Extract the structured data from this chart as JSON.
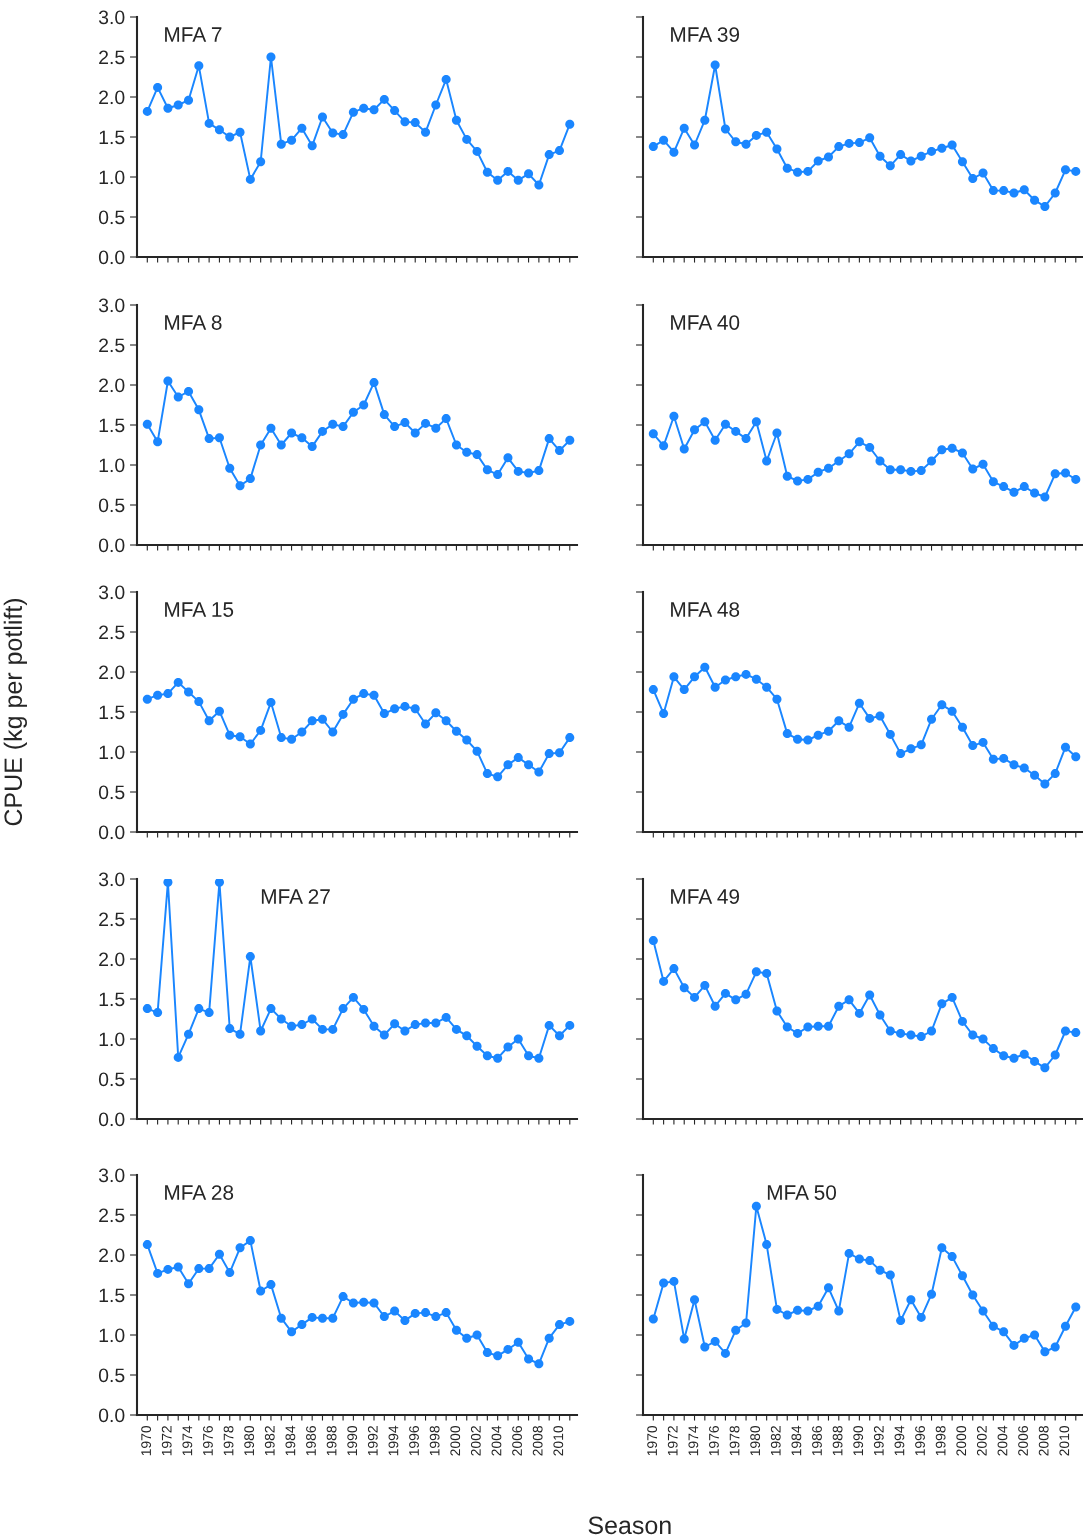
{
  "chart_data": [
    {
      "type": "line",
      "title": "MFA 7",
      "marker": "circle",
      "xlim": [
        1969,
        2011.7
      ],
      "ylim": [
        0,
        3
      ],
      "tick_labels": "y",
      "x": [
        1970,
        1971,
        1972,
        1973,
        1974,
        1975,
        1976,
        1977,
        1978,
        1979,
        1980,
        1981,
        1982,
        1983,
        1984,
        1985,
        1986,
        1987,
        1988,
        1989,
        1990,
        1991,
        1992,
        1993,
        1994,
        1995,
        1996,
        1997,
        1998,
        1999,
        2000,
        2001,
        2002,
        2003,
        2004,
        2005,
        2006,
        2007,
        2008,
        2009,
        2010,
        2011
      ],
      "xticks": [
        1970,
        {
          "value": 1971,
          "label": null
        },
        1972,
        {
          "value": 1973,
          "label": null
        },
        1974,
        {
          "value": 1975,
          "label": null
        },
        1976,
        {
          "value": 1977,
          "label": null
        },
        1978,
        {
          "value": 1979,
          "label": null
        },
        1980,
        {
          "value": 1981,
          "label": null
        },
        1982,
        {
          "value": 1983,
          "label": null
        },
        1984,
        {
          "value": 1985,
          "label": null
        },
        1986,
        {
          "value": 1987,
          "label": null
        },
        1988,
        {
          "value": 1989,
          "label": null
        },
        1990,
        {
          "value": 1991,
          "label": null
        },
        1992,
        {
          "value": 1993,
          "label": null
        },
        1994,
        {
          "value": 1995,
          "label": null
        },
        1996,
        {
          "value": 1997,
          "label": null
        },
        1998,
        {
          "value": 1999,
          "label": null
        },
        2000,
        {
          "value": 2001,
          "label": null
        },
        2002,
        {
          "value": 2003,
          "label": null
        },
        2004,
        {
          "value": 2005,
          "label": null
        },
        2006,
        {
          "value": 2007,
          "label": null
        },
        2008,
        {
          "value": 2009,
          "label": null
        },
        2010,
        {
          "value": 2011,
          "label": null
        }
      ],
      "yticks": [
        {
          "value": 0,
          "label": "0.0"
        },
        {
          "value": 0.5,
          "label": "0.5"
        },
        {
          "value": 1,
          "label": "1.0"
        },
        {
          "value": 1.5,
          "label": "1.5"
        },
        {
          "value": 2,
          "label": "2.0"
        },
        {
          "value": 2.5,
          "label": "2.5"
        },
        {
          "value": 3,
          "label": "3.0"
        }
      ],
      "series": [
        {
          "color": "#1a86ff",
          "values": [
            1.82,
            2.12,
            1.86,
            1.9,
            1.96,
            2.39,
            1.67,
            1.59,
            1.5,
            1.56,
            0.97,
            1.19,
            2.5,
            1.41,
            1.46,
            1.61,
            1.39,
            1.75,
            1.55,
            1.53,
            1.81,
            1.86,
            1.84,
            1.97,
            1.83,
            1.69,
            1.68,
            1.56,
            1.9,
            2.22,
            1.71,
            1.47,
            1.32,
            1.06,
            0.96,
            1.07,
            0.96,
            1.04,
            0.9,
            1.28,
            1.33,
            1.66
          ]
        }
      ]
    },
    {
      "type": "line",
      "title": "MFA 39",
      "marker": "circle",
      "xlim": [
        1969,
        2011.7
      ],
      "ylim": [
        0,
        3
      ],
      "tick_labels": false,
      "x": [
        1970,
        1971,
        1972,
        1973,
        1974,
        1975,
        1976,
        1977,
        1978,
        1979,
        1980,
        1981,
        1982,
        1983,
        1984,
        1985,
        1986,
        1987,
        1988,
        1989,
        1990,
        1991,
        1992,
        1993,
        1994,
        1995,
        1996,
        1997,
        1998,
        1999,
        2000,
        2001,
        2002,
        2003,
        2004,
        2005,
        2006,
        2007,
        2008,
        2009,
        2010,
        2011
      ],
      "xticks": [
        1970,
        {
          "value": 1971,
          "label": null
        },
        1972,
        {
          "value": 1973,
          "label": null
        },
        1974,
        {
          "value": 1975,
          "label": null
        },
        1976,
        {
          "value": 1977,
          "label": null
        },
        1978,
        {
          "value": 1979,
          "label": null
        },
        1980,
        {
          "value": 1981,
          "label": null
        },
        1982,
        {
          "value": 1983,
          "label": null
        },
        1984,
        {
          "value": 1985,
          "label": null
        },
        1986,
        {
          "value": 1987,
          "label": null
        },
        1988,
        {
          "value": 1989,
          "label": null
        },
        1990,
        {
          "value": 1991,
          "label": null
        },
        1992,
        {
          "value": 1993,
          "label": null
        },
        1994,
        {
          "value": 1995,
          "label": null
        },
        1996,
        {
          "value": 1997,
          "label": null
        },
        1998,
        {
          "value": 1999,
          "label": null
        },
        2000,
        {
          "value": 2001,
          "label": null
        },
        2002,
        {
          "value": 2003,
          "label": null
        },
        2004,
        {
          "value": 2005,
          "label": null
        },
        2006,
        {
          "value": 2007,
          "label": null
        },
        2008,
        {
          "value": 2009,
          "label": null
        },
        2010,
        {
          "value": 2011,
          "label": null
        }
      ],
      "yticks": [
        {
          "value": 0,
          "label": null
        },
        {
          "value": 0.5,
          "label": null
        },
        {
          "value": 1,
          "label": null
        },
        {
          "value": 1.5,
          "label": null
        },
        {
          "value": 2,
          "label": null
        },
        {
          "value": 2.5,
          "label": null
        },
        {
          "value": 3,
          "label": null
        }
      ],
      "series": [
        {
          "color": "#1a86ff",
          "values": [
            1.38,
            1.46,
            1.31,
            1.61,
            1.4,
            1.71,
            2.4,
            1.6,
            1.44,
            1.41,
            1.52,
            1.56,
            1.35,
            1.11,
            1.06,
            1.07,
            1.2,
            1.25,
            1.38,
            1.42,
            1.43,
            1.49,
            1.26,
            1.14,
            1.28,
            1.2,
            1.26,
            1.32,
            1.36,
            1.4,
            1.19,
            0.98,
            1.05,
            0.83,
            0.83,
            0.8,
            0.84,
            0.71,
            0.63,
            0.8,
            1.09,
            1.07
          ]
        }
      ]
    },
    {
      "type": "line",
      "title": "MFA 8",
      "marker": "circle",
      "xlim": [
        1969,
        2011.7
      ],
      "ylim": [
        0,
        3
      ],
      "tick_labels": "y",
      "x": [
        1970,
        1971,
        1972,
        1973,
        1974,
        1975,
        1976,
        1977,
        1978,
        1979,
        1980,
        1981,
        1982,
        1983,
        1984,
        1985,
        1986,
        1987,
        1988,
        1989,
        1990,
        1991,
        1992,
        1993,
        1994,
        1995,
        1996,
        1997,
        1998,
        1999,
        2000,
        2001,
        2002,
        2003,
        2004,
        2005,
        2006,
        2007,
        2008,
        2009,
        2010,
        2011
      ],
      "xticks": [
        1970,
        {
          "value": 1971,
          "label": null
        },
        1972,
        {
          "value": 1973,
          "label": null
        },
        1974,
        {
          "value": 1975,
          "label": null
        },
        1976,
        {
          "value": 1977,
          "label": null
        },
        1978,
        {
          "value": 1979,
          "label": null
        },
        1980,
        {
          "value": 1981,
          "label": null
        },
        1982,
        {
          "value": 1983,
          "label": null
        },
        1984,
        {
          "value": 1985,
          "label": null
        },
        1986,
        {
          "value": 1987,
          "label": null
        },
        1988,
        {
          "value": 1989,
          "label": null
        },
        1990,
        {
          "value": 1991,
          "label": null
        },
        1992,
        {
          "value": 1993,
          "label": null
        },
        1994,
        {
          "value": 1995,
          "label": null
        },
        1996,
        {
          "value": 1997,
          "label": null
        },
        1998,
        {
          "value": 1999,
          "label": null
        },
        2000,
        {
          "value": 2001,
          "label": null
        },
        2002,
        {
          "value": 2003,
          "label": null
        },
        2004,
        {
          "value": 2005,
          "label": null
        },
        2006,
        {
          "value": 2007,
          "label": null
        },
        2008,
        {
          "value": 2009,
          "label": null
        },
        2010,
        {
          "value": 2011,
          "label": null
        }
      ],
      "yticks": [
        {
          "value": 0,
          "label": "0.0"
        },
        {
          "value": 0.5,
          "label": "0.5"
        },
        {
          "value": 1,
          "label": "1.0"
        },
        {
          "value": 1.5,
          "label": "1.5"
        },
        {
          "value": 2,
          "label": "2.0"
        },
        {
          "value": 2.5,
          "label": "2.5"
        },
        {
          "value": 3,
          "label": "3.0"
        }
      ],
      "series": [
        {
          "color": "#1a86ff",
          "values": [
            1.51,
            1.29,
            2.05,
            1.85,
            1.92,
            1.69,
            1.33,
            1.34,
            0.96,
            0.74,
            0.83,
            1.25,
            1.46,
            1.25,
            1.4,
            1.34,
            1.23,
            1.42,
            1.51,
            1.48,
            1.66,
            1.75,
            2.03,
            1.63,
            1.48,
            1.53,
            1.4,
            1.52,
            1.46,
            1.58,
            1.25,
            1.16,
            1.13,
            0.94,
            0.88,
            1.09,
            0.92,
            0.9,
            0.93,
            1.33,
            1.18,
            1.31
          ]
        }
      ]
    },
    {
      "type": "line",
      "title": "MFA 40",
      "marker": "circle",
      "xlim": [
        1969,
        2011.7
      ],
      "ylim": [
        0,
        3
      ],
      "tick_labels": false,
      "x": [
        1970,
        1971,
        1972,
        1973,
        1974,
        1975,
        1976,
        1977,
        1978,
        1979,
        1980,
        1981,
        1982,
        1983,
        1984,
        1985,
        1986,
        1987,
        1988,
        1989,
        1990,
        1991,
        1992,
        1993,
        1994,
        1995,
        1996,
        1997,
        1998,
        1999,
        2000,
        2001,
        2002,
        2003,
        2004,
        2005,
        2006,
        2007,
        2008,
        2009,
        2010,
        2011
      ],
      "xticks": [
        1970,
        {
          "value": 1971,
          "label": null
        },
        1972,
        {
          "value": 1973,
          "label": null
        },
        1974,
        {
          "value": 1975,
          "label": null
        },
        1976,
        {
          "value": 1977,
          "label": null
        },
        1978,
        {
          "value": 1979,
          "label": null
        },
        1980,
        {
          "value": 1981,
          "label": null
        },
        1982,
        {
          "value": 1983,
          "label": null
        },
        1984,
        {
          "value": 1985,
          "label": null
        },
        1986,
        {
          "value": 1987,
          "label": null
        },
        1988,
        {
          "value": 1989,
          "label": null
        },
        1990,
        {
          "value": 1991,
          "label": null
        },
        1992,
        {
          "value": 1993,
          "label": null
        },
        1994,
        {
          "value": 1995,
          "label": null
        },
        1996,
        {
          "value": 1997,
          "label": null
        },
        1998,
        {
          "value": 1999,
          "label": null
        },
        2000,
        {
          "value": 2001,
          "label": null
        },
        2002,
        {
          "value": 2003,
          "label": null
        },
        2004,
        {
          "value": 2005,
          "label": null
        },
        2006,
        {
          "value": 2007,
          "label": null
        },
        2008,
        {
          "value": 2009,
          "label": null
        },
        2010,
        {
          "value": 2011,
          "label": null
        }
      ],
      "yticks": [
        {
          "value": 0,
          "label": null
        },
        {
          "value": 0.5,
          "label": null
        },
        {
          "value": 1,
          "label": null
        },
        {
          "value": 1.5,
          "label": null
        },
        {
          "value": 2,
          "label": null
        },
        {
          "value": 2.5,
          "label": null
        },
        {
          "value": 3,
          "label": null
        }
      ],
      "series": [
        {
          "color": "#1a86ff",
          "values": [
            1.39,
            1.24,
            1.61,
            1.2,
            1.44,
            1.54,
            1.31,
            1.51,
            1.42,
            1.33,
            1.54,
            1.05,
            1.4,
            0.86,
            0.8,
            0.82,
            0.91,
            0.96,
            1.05,
            1.14,
            1.29,
            1.22,
            1.05,
            0.94,
            0.94,
            0.92,
            0.93,
            1.05,
            1.19,
            1.21,
            1.15,
            0.95,
            1.01,
            0.79,
            0.73,
            0.66,
            0.73,
            0.65,
            0.6,
            0.89,
            0.9,
            0.82
          ]
        }
      ]
    },
    {
      "type": "line",
      "title": "MFA 15",
      "ylabel": "CPUE (kg per potlift)",
      "marker": "circle",
      "xlim": [
        1969,
        2011.7
      ],
      "ylim": [
        0,
        3
      ],
      "tick_labels": "y",
      "x": [
        1970,
        1971,
        1972,
        1973,
        1974,
        1975,
        1976,
        1977,
        1978,
        1979,
        1980,
        1981,
        1982,
        1983,
        1984,
        1985,
        1986,
        1987,
        1988,
        1989,
        1990,
        1991,
        1992,
        1993,
        1994,
        1995,
        1996,
        1997,
        1998,
        1999,
        2000,
        2001,
        2002,
        2003,
        2004,
        2005,
        2006,
        2007,
        2008,
        2009,
        2010,
        2011
      ],
      "xticks": [
        1970,
        {
          "value": 1971,
          "label": null
        },
        1972,
        {
          "value": 1973,
          "label": null
        },
        1974,
        {
          "value": 1975,
          "label": null
        },
        1976,
        {
          "value": 1977,
          "label": null
        },
        1978,
        {
          "value": 1979,
          "label": null
        },
        1980,
        {
          "value": 1981,
          "label": null
        },
        1982,
        {
          "value": 1983,
          "label": null
        },
        1984,
        {
          "value": 1985,
          "label": null
        },
        1986,
        {
          "value": 1987,
          "label": null
        },
        1988,
        {
          "value": 1989,
          "label": null
        },
        1990,
        {
          "value": 1991,
          "label": null
        },
        1992,
        {
          "value": 1993,
          "label": null
        },
        1994,
        {
          "value": 1995,
          "label": null
        },
        1996,
        {
          "value": 1997,
          "label": null
        },
        1998,
        {
          "value": 1999,
          "label": null
        },
        2000,
        {
          "value": 2001,
          "label": null
        },
        2002,
        {
          "value": 2003,
          "label": null
        },
        2004,
        {
          "value": 2005,
          "label": null
        },
        2006,
        {
          "value": 2007,
          "label": null
        },
        2008,
        {
          "value": 2009,
          "label": null
        },
        2010,
        {
          "value": 2011,
          "label": null
        }
      ],
      "yticks": [
        {
          "value": 0,
          "label": "0.0"
        },
        {
          "value": 0.5,
          "label": "0.5"
        },
        {
          "value": 1,
          "label": "1.0"
        },
        {
          "value": 1.5,
          "label": "1.5"
        },
        {
          "value": 2,
          "label": "2.0"
        },
        {
          "value": 2.5,
          "label": "2.5"
        },
        {
          "value": 3,
          "label": "3.0"
        }
      ],
      "series": [
        {
          "color": "#1a86ff",
          "values": [
            1.66,
            1.71,
            1.73,
            1.87,
            1.75,
            1.63,
            1.39,
            1.51,
            1.21,
            1.19,
            1.1,
            1.27,
            1.62,
            1.18,
            1.16,
            1.25,
            1.39,
            1.41,
            1.25,
            1.47,
            1.66,
            1.73,
            1.71,
            1.48,
            1.54,
            1.57,
            1.54,
            1.35,
            1.49,
            1.39,
            1.26,
            1.15,
            1.01,
            0.73,
            0.69,
            0.84,
            0.93,
            0.84,
            0.75,
            0.98,
            0.99,
            1.18
          ]
        }
      ]
    },
    {
      "type": "line",
      "title": "MFA 48",
      "marker": "circle",
      "xlim": [
        1969,
        2011.7
      ],
      "ylim": [
        0,
        3
      ],
      "tick_labels": false,
      "x": [
        1970,
        1971,
        1972,
        1973,
        1974,
        1975,
        1976,
        1977,
        1978,
        1979,
        1980,
        1981,
        1982,
        1983,
        1984,
        1985,
        1986,
        1987,
        1988,
        1989,
        1990,
        1991,
        1992,
        1993,
        1994,
        1995,
        1996,
        1997,
        1998,
        1999,
        2000,
        2001,
        2002,
        2003,
        2004,
        2005,
        2006,
        2007,
        2008,
        2009,
        2010,
        2011
      ],
      "xticks": [
        1970,
        {
          "value": 1971,
          "label": null
        },
        1972,
        {
          "value": 1973,
          "label": null
        },
        1974,
        {
          "value": 1975,
          "label": null
        },
        1976,
        {
          "value": 1977,
          "label": null
        },
        1978,
        {
          "value": 1979,
          "label": null
        },
        1980,
        {
          "value": 1981,
          "label": null
        },
        1982,
        {
          "value": 1983,
          "label": null
        },
        1984,
        {
          "value": 1985,
          "label": null
        },
        1986,
        {
          "value": 1987,
          "label": null
        },
        1988,
        {
          "value": 1989,
          "label": null
        },
        1990,
        {
          "value": 1991,
          "label": null
        },
        1992,
        {
          "value": 1993,
          "label": null
        },
        1994,
        {
          "value": 1995,
          "label": null
        },
        1996,
        {
          "value": 1997,
          "label": null
        },
        1998,
        {
          "value": 1999,
          "label": null
        },
        2000,
        {
          "value": 2001,
          "label": null
        },
        2002,
        {
          "value": 2003,
          "label": null
        },
        2004,
        {
          "value": 2005,
          "label": null
        },
        2006,
        {
          "value": 2007,
          "label": null
        },
        2008,
        {
          "value": 2009,
          "label": null
        },
        2010,
        {
          "value": 2011,
          "label": null
        }
      ],
      "yticks": [
        {
          "value": 0,
          "label": null
        },
        {
          "value": 0.5,
          "label": null
        },
        {
          "value": 1,
          "label": null
        },
        {
          "value": 1.5,
          "label": null
        },
        {
          "value": 2,
          "label": null
        },
        {
          "value": 2.5,
          "label": null
        },
        {
          "value": 3,
          "label": null
        }
      ],
      "series": [
        {
          "color": "#1a86ff",
          "values": [
            1.78,
            1.48,
            1.94,
            1.78,
            1.94,
            2.06,
            1.81,
            1.9,
            1.94,
            1.97,
            1.91,
            1.81,
            1.66,
            1.23,
            1.16,
            1.15,
            1.21,
            1.26,
            1.39,
            1.31,
            1.61,
            1.42,
            1.45,
            1.22,
            0.98,
            1.04,
            1.09,
            1.41,
            1.59,
            1.51,
            1.31,
            1.08,
            1.12,
            0.91,
            0.92,
            0.84,
            0.8,
            0.71,
            0.6,
            0.73,
            1.06,
            0.94
          ]
        }
      ]
    },
    {
      "type": "line",
      "title": "MFA 27",
      "marker": "circle",
      "xlim": [
        1969,
        2011.7
      ],
      "ylim": [
        0,
        3
      ],
      "tick_labels": "y",
      "x": [
        1970,
        1971,
        1972,
        1973,
        1974,
        1975,
        1976,
        1977,
        1978,
        1979,
        1980,
        1981,
        1982,
        1983,
        1984,
        1985,
        1986,
        1987,
        1988,
        1989,
        1990,
        1991,
        1992,
        1993,
        1994,
        1995,
        1996,
        1997,
        1998,
        1999,
        2000,
        2001,
        2002,
        2003,
        2004,
        2005,
        2006,
        2007,
        2008,
        2009,
        2010,
        2011
      ],
      "xticks": [
        1970,
        {
          "value": 1971,
          "label": null
        },
        1972,
        {
          "value": 1973,
          "label": null
        },
        1974,
        {
          "value": 1975,
          "label": null
        },
        1976,
        {
          "value": 1977,
          "label": null
        },
        1978,
        {
          "value": 1979,
          "label": null
        },
        1980,
        {
          "value": 1981,
          "label": null
        },
        1982,
        {
          "value": 1983,
          "label": null
        },
        1984,
        {
          "value": 1985,
          "label": null
        },
        1986,
        {
          "value": 1987,
          "label": null
        },
        1988,
        {
          "value": 1989,
          "label": null
        },
        1990,
        {
          "value": 1991,
          "label": null
        },
        1992,
        {
          "value": 1993,
          "label": null
        },
        1994,
        {
          "value": 1995,
          "label": null
        },
        1996,
        {
          "value": 1997,
          "label": null
        },
        1998,
        {
          "value": 1999,
          "label": null
        },
        2000,
        {
          "value": 2001,
          "label": null
        },
        2002,
        {
          "value": 2003,
          "label": null
        },
        2004,
        {
          "value": 2005,
          "label": null
        },
        2006,
        {
          "value": 2007,
          "label": null
        },
        2008,
        {
          "value": 2009,
          "label": null
        },
        2010,
        {
          "value": 2011,
          "label": null
        }
      ],
      "yticks": [
        {
          "value": 0,
          "label": "0.0"
        },
        {
          "value": 0.5,
          "label": "0.5"
        },
        {
          "value": 1,
          "label": "1.0"
        },
        {
          "value": 1.5,
          "label": "1.5"
        },
        {
          "value": 2,
          "label": "2.0"
        },
        {
          "value": 2.5,
          "label": "2.5"
        },
        {
          "value": 3,
          "label": "3.0"
        }
      ],
      "series": [
        {
          "color": "#1a86ff",
          "values": [
            1.38,
            1.33,
            2.96,
            0.77,
            1.06,
            1.38,
            1.33,
            2.96,
            1.13,
            1.06,
            2.03,
            1.1,
            1.38,
            1.25,
            1.16,
            1.18,
            1.25,
            1.12,
            1.12,
            1.38,
            1.52,
            1.37,
            1.16,
            1.05,
            1.19,
            1.1,
            1.18,
            1.2,
            1.2,
            1.27,
            1.12,
            1.04,
            0.91,
            0.79,
            0.76,
            0.9,
            1.0,
            0.79,
            0.76,
            1.17,
            1.04,
            1.17
          ]
        }
      ]
    },
    {
      "type": "line",
      "title": "MFA 49",
      "marker": "circle",
      "xlim": [
        1969,
        2011.7
      ],
      "ylim": [
        0,
        3
      ],
      "tick_labels": false,
      "x": [
        1970,
        1971,
        1972,
        1973,
        1974,
        1975,
        1976,
        1977,
        1978,
        1979,
        1980,
        1981,
        1982,
        1983,
        1984,
        1985,
        1986,
        1987,
        1988,
        1989,
        1990,
        1991,
        1992,
        1993,
        1994,
        1995,
        1996,
        1997,
        1998,
        1999,
        2000,
        2001,
        2002,
        2003,
        2004,
        2005,
        2006,
        2007,
        2008,
        2009,
        2010,
        2011
      ],
      "xticks": [
        1970,
        {
          "value": 1971,
          "label": null
        },
        1972,
        {
          "value": 1973,
          "label": null
        },
        1974,
        {
          "value": 1975,
          "label": null
        },
        1976,
        {
          "value": 1977,
          "label": null
        },
        1978,
        {
          "value": 1979,
          "label": null
        },
        1980,
        {
          "value": 1981,
          "label": null
        },
        1982,
        {
          "value": 1983,
          "label": null
        },
        1984,
        {
          "value": 1985,
          "label": null
        },
        1986,
        {
          "value": 1987,
          "label": null
        },
        1988,
        {
          "value": 1989,
          "label": null
        },
        1990,
        {
          "value": 1991,
          "label": null
        },
        1992,
        {
          "value": 1993,
          "label": null
        },
        1994,
        {
          "value": 1995,
          "label": null
        },
        1996,
        {
          "value": 1997,
          "label": null
        },
        1998,
        {
          "value": 1999,
          "label": null
        },
        2000,
        {
          "value": 2001,
          "label": null
        },
        2002,
        {
          "value": 2003,
          "label": null
        },
        2004,
        {
          "value": 2005,
          "label": null
        },
        2006,
        {
          "value": 2007,
          "label": null
        },
        2008,
        {
          "value": 2009,
          "label": null
        },
        2010,
        {
          "value": 2011,
          "label": null
        }
      ],
      "yticks": [
        {
          "value": 0,
          "label": null
        },
        {
          "value": 0.5,
          "label": null
        },
        {
          "value": 1,
          "label": null
        },
        {
          "value": 1.5,
          "label": null
        },
        {
          "value": 2,
          "label": null
        },
        {
          "value": 2.5,
          "label": null
        },
        {
          "value": 3,
          "label": null
        }
      ],
      "series": [
        {
          "color": "#1a86ff",
          "values": [
            2.23,
            1.72,
            1.88,
            1.64,
            1.52,
            1.67,
            1.41,
            1.57,
            1.49,
            1.56,
            1.84,
            1.82,
            1.35,
            1.15,
            1.07,
            1.15,
            1.16,
            1.16,
            1.41,
            1.49,
            1.32,
            1.55,
            1.3,
            1.1,
            1.07,
            1.05,
            1.03,
            1.1,
            1.44,
            1.52,
            1.22,
            1.05,
            1.0,
            0.88,
            0.79,
            0.76,
            0.81,
            0.72,
            0.64,
            0.8,
            1.1,
            1.08
          ]
        }
      ]
    },
    {
      "type": "line",
      "title": "MFA 28",
      "xlabel": "Season",
      "marker": "circle",
      "xlim": [
        1969,
        2011.7
      ],
      "ylim": [
        0,
        3
      ],
      "x": [
        1970,
        1971,
        1972,
        1973,
        1974,
        1975,
        1976,
        1977,
        1978,
        1979,
        1980,
        1981,
        1982,
        1983,
        1984,
        1985,
        1986,
        1987,
        1988,
        1989,
        1990,
        1991,
        1992,
        1993,
        1994,
        1995,
        1996,
        1997,
        1998,
        1999,
        2000,
        2001,
        2002,
        2003,
        2004,
        2005,
        2006,
        2007,
        2008,
        2009,
        2010,
        2011
      ],
      "xticks": [
        1970,
        {
          "value": 1971,
          "label": null
        },
        1972,
        {
          "value": 1973,
          "label": null
        },
        1974,
        {
          "value": 1975,
          "label": null
        },
        1976,
        {
          "value": 1977,
          "label": null
        },
        1978,
        {
          "value": 1979,
          "label": null
        },
        1980,
        {
          "value": 1981,
          "label": null
        },
        1982,
        {
          "value": 1983,
          "label": null
        },
        1984,
        {
          "value": 1985,
          "label": null
        },
        1986,
        {
          "value": 1987,
          "label": null
        },
        1988,
        {
          "value": 1989,
          "label": null
        },
        1990,
        {
          "value": 1991,
          "label": null
        },
        1992,
        {
          "value": 1993,
          "label": null
        },
        1994,
        {
          "value": 1995,
          "label": null
        },
        1996,
        {
          "value": 1997,
          "label": null
        },
        1998,
        {
          "value": 1999,
          "label": null
        },
        2000,
        {
          "value": 2001,
          "label": null
        },
        2002,
        {
          "value": 2003,
          "label": null
        },
        2004,
        {
          "value": 2005,
          "label": null
        },
        2006,
        {
          "value": 2007,
          "label": null
        },
        2008,
        {
          "value": 2009,
          "label": null
        },
        2010,
        {
          "value": 2011,
          "label": null
        }
      ],
      "yticks": [
        {
          "value": 0,
          "label": "0.0"
        },
        {
          "value": 0.5,
          "label": "0.5"
        },
        {
          "value": 1,
          "label": "1.0"
        },
        {
          "value": 1.5,
          "label": "1.5"
        },
        {
          "value": 2,
          "label": "2.0"
        },
        {
          "value": 2.5,
          "label": "2.5"
        },
        {
          "value": 3,
          "label": "3.0"
        }
      ],
      "series": [
        {
          "color": "#1a86ff",
          "values": [
            2.13,
            1.77,
            1.82,
            1.85,
            1.64,
            1.83,
            1.83,
            2.01,
            1.78,
            2.09,
            2.18,
            1.55,
            1.63,
            1.21,
            1.04,
            1.13,
            1.22,
            1.21,
            1.21,
            1.48,
            1.4,
            1.41,
            1.4,
            1.23,
            1.3,
            1.18,
            1.27,
            1.28,
            1.23,
            1.28,
            1.06,
            0.96,
            1.0,
            0.78,
            0.74,
            0.82,
            0.91,
            0.7,
            0.64,
            0.96,
            1.13,
            1.17
          ]
        }
      ]
    },
    {
      "type": "line",
      "title": "MFA 50",
      "marker": "circle",
      "xlim": [
        1969,
        2011.7
      ],
      "ylim": [
        0,
        3
      ],
      "tick_labels": "x",
      "x": [
        1970,
        1971,
        1972,
        1973,
        1974,
        1975,
        1976,
        1977,
        1978,
        1979,
        1980,
        1981,
        1982,
        1983,
        1984,
        1985,
        1986,
        1987,
        1988,
        1989,
        1990,
        1991,
        1992,
        1993,
        1994,
        1995,
        1996,
        1997,
        1998,
        1999,
        2000,
        2001,
        2002,
        2003,
        2004,
        2005,
        2006,
        2007,
        2008,
        2009,
        2010,
        2011
      ],
      "xticks": [
        1970,
        {
          "value": 1971,
          "label": null
        },
        1972,
        {
          "value": 1973,
          "label": null
        },
        1974,
        {
          "value": 1975,
          "label": null
        },
        1976,
        {
          "value": 1977,
          "label": null
        },
        1978,
        {
          "value": 1979,
          "label": null
        },
        1980,
        {
          "value": 1981,
          "label": null
        },
        1982,
        {
          "value": 1983,
          "label": null
        },
        1984,
        {
          "value": 1985,
          "label": null
        },
        1986,
        {
          "value": 1987,
          "label": null
        },
        1988,
        {
          "value": 1989,
          "label": null
        },
        1990,
        {
          "value": 1991,
          "label": null
        },
        1992,
        {
          "value": 1993,
          "label": null
        },
        1994,
        {
          "value": 1995,
          "label": null
        },
        1996,
        {
          "value": 1997,
          "label": null
        },
        1998,
        {
          "value": 1999,
          "label": null
        },
        2000,
        {
          "value": 2001,
          "label": null
        },
        2002,
        {
          "value": 2003,
          "label": null
        },
        2004,
        {
          "value": 2005,
          "label": null
        },
        2006,
        {
          "value": 2007,
          "label": null
        },
        2008,
        {
          "value": 2009,
          "label": null
        },
        2010,
        {
          "value": 2011,
          "label": null
        }
      ],
      "yticks": [
        {
          "value": 0,
          "label": null
        },
        {
          "value": 0.5,
          "label": null
        },
        {
          "value": 1,
          "label": null
        },
        {
          "value": 1.5,
          "label": null
        },
        {
          "value": 2,
          "label": null
        },
        {
          "value": 2.5,
          "label": null
        },
        {
          "value": 3,
          "label": null
        }
      ],
      "series": [
        {
          "color": "#1a86ff",
          "values": [
            1.2,
            1.65,
            1.67,
            0.95,
            1.44,
            0.85,
            0.92,
            0.77,
            1.06,
            1.15,
            2.61,
            2.13,
            1.32,
            1.25,
            1.31,
            1.3,
            1.36,
            1.59,
            1.3,
            2.02,
            1.95,
            1.93,
            1.81,
            1.75,
            1.18,
            1.44,
            1.22,
            1.51,
            2.09,
            1.98,
            1.74,
            1.5,
            1.3,
            1.11,
            1.04,
            0.87,
            0.96,
            1.0,
            0.79,
            0.85,
            1.11,
            1.35
          ]
        }
      ]
    }
  ]
}
